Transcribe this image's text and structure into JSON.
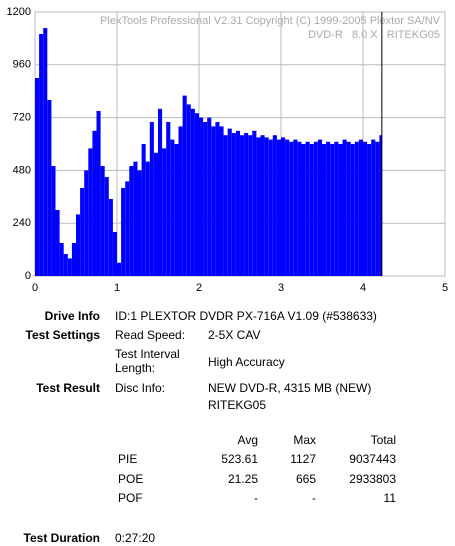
{
  "chart_data": {
    "type": "area",
    "color": "#0000ff",
    "watermark": [
      "PlexTools Professional V2.31 Copyright (C) 1999-2005 Plextor SA/NV",
      "DVD-R   8.0 X   RITEKG05"
    ],
    "x": [
      0,
      0.05,
      0.1,
      0.15,
      0.2,
      0.25,
      0.3,
      0.35,
      0.4,
      0.45,
      0.5,
      0.55,
      0.6,
      0.65,
      0.7,
      0.75,
      0.8,
      0.85,
      0.9,
      0.95,
      1.0,
      1.05,
      1.1,
      1.15,
      1.2,
      1.25,
      1.3,
      1.35,
      1.4,
      1.45,
      1.5,
      1.55,
      1.6,
      1.65,
      1.7,
      1.75,
      1.8,
      1.85,
      1.9,
      1.95,
      2.0,
      2.05,
      2.1,
      2.15,
      2.2,
      2.25,
      2.3,
      2.35,
      2.4,
      2.45,
      2.5,
      2.55,
      2.6,
      2.65,
      2.7,
      2.75,
      2.8,
      2.85,
      2.9,
      2.95,
      3.0,
      3.05,
      3.1,
      3.15,
      3.2,
      3.25,
      3.3,
      3.35,
      3.4,
      3.45,
      3.5,
      3.55,
      3.6,
      3.65,
      3.7,
      3.75,
      3.8,
      3.85,
      3.9,
      3.95,
      4.0,
      4.05,
      4.1,
      4.15,
      4.2
    ],
    "values": [
      900,
      1100,
      1127,
      800,
      500,
      300,
      150,
      100,
      80,
      150,
      280,
      400,
      480,
      580,
      660,
      750,
      500,
      450,
      350,
      200,
      60,
      400,
      430,
      500,
      520,
      480,
      600,
      520,
      700,
      560,
      760,
      580,
      700,
      620,
      600,
      680,
      820,
      780,
      760,
      740,
      720,
      700,
      720,
      680,
      700,
      680,
      640,
      670,
      650,
      660,
      640,
      650,
      640,
      660,
      630,
      640,
      630,
      620,
      640,
      620,
      630,
      620,
      610,
      620,
      610,
      600,
      610,
      600,
      610,
      620,
      600,
      610,
      600,
      610,
      600,
      620,
      610,
      600,
      610,
      620,
      610,
      600,
      620,
      610,
      640
    ],
    "end_line_x": 4.23,
    "xlim": [
      0,
      5
    ],
    "xticks": [
      0,
      1,
      2,
      3,
      4,
      5
    ],
    "ylim": [
      0,
      1200
    ],
    "yticks": [
      0,
      240,
      480,
      720,
      960,
      1200
    ],
    "grid": true
  },
  "info": {
    "drive_info": {
      "label": "Drive Info",
      "value": "ID:1 PLEXTOR DVDR PX-716A V1.09 (#538633)"
    },
    "test_settings": {
      "label": "Test Settings",
      "read_speed": {
        "label": "Read Speed:",
        "value": "2-5X CAV"
      },
      "interval": {
        "label": "Test Interval Length:",
        "value": "High Accuracy"
      }
    },
    "test_result": {
      "label": "Test Result",
      "disc_info": {
        "label": "Disc Info:",
        "value": [
          "NEW DVD-R, 4315 MB (NEW)",
          "RITEKG05"
        ]
      },
      "table": {
        "header": [
          "Avg",
          "Max",
          "Total"
        ],
        "rows": [
          [
            "PIE",
            523.61,
            1127,
            9037443
          ],
          [
            "POE",
            21.25,
            665,
            2933803
          ],
          [
            "POF",
            "-",
            "-",
            11
          ]
        ]
      }
    },
    "test_duration": {
      "label": "Test Duration",
      "value": "0:27:20"
    }
  }
}
